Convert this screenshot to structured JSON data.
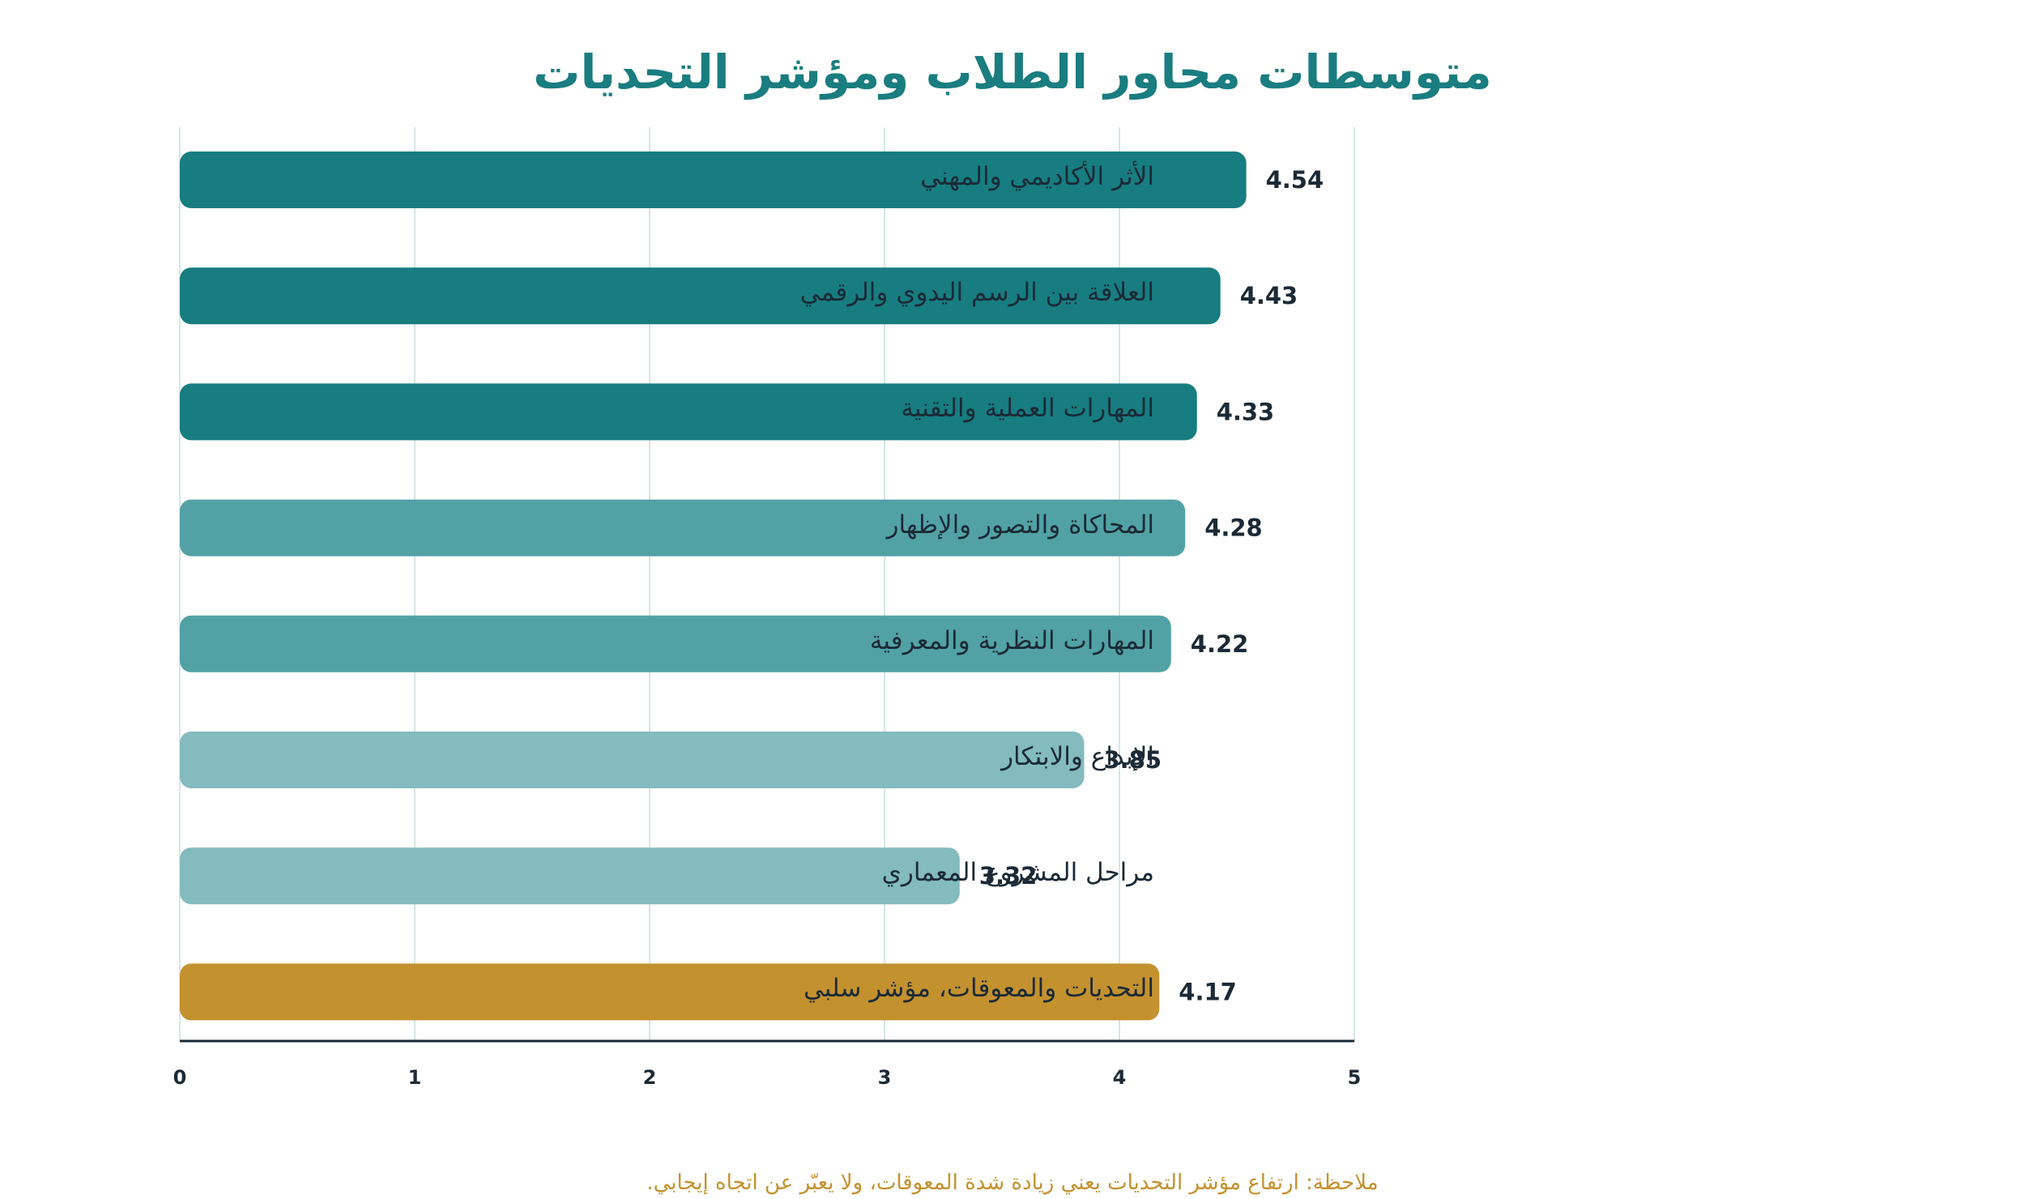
{
  "chart_data": {
    "type": "bar",
    "orientation": "horizontal",
    "title": "متوسطات محاور الطلاب ومؤشر التحديات",
    "categories": [
      "الأثر الأكاديمي والمهني",
      "العلاقة بين الرسم اليدوي والرقمي",
      "المهارات العملية والتقنية",
      "المحاكاة والتصور والإظهار",
      "المهارات النظرية والمعرفية",
      "الإبداع والابتكار",
      "مراحل المشروع المعماري",
      "التحديات والمعوقات، مؤشر سلبي"
    ],
    "values": [
      4.54,
      4.43,
      4.33,
      4.28,
      4.22,
      3.85,
      3.32,
      4.17
    ],
    "value_labels": [
      "4.54",
      "4.43",
      "4.33",
      "4.28",
      "4.22",
      "3.85",
      "3.32",
      "4.17"
    ],
    "bar_colors": [
      "#177d80",
      "#177d80",
      "#177d80",
      "#52a2a5",
      "#52a2a5",
      "#83bbbe",
      "#83bbbe",
      "#c4912f"
    ],
    "xlim": [
      0,
      5
    ],
    "x_ticks": [
      "0",
      "1",
      "2",
      "3",
      "4",
      "5"
    ],
    "grid": "vertical",
    "xlabel": "",
    "ylabel": ""
  },
  "note": "ملاحظة: ارتفاع مؤشر التحديات يعني زيادة شدة المعوقات، ولا يعبّر عن اتجاه إيجابي.",
  "colors": {
    "title": "#1a7d80",
    "note": "#c4912f",
    "axis": "#1b2a36",
    "grid": "#d6e6e6"
  }
}
